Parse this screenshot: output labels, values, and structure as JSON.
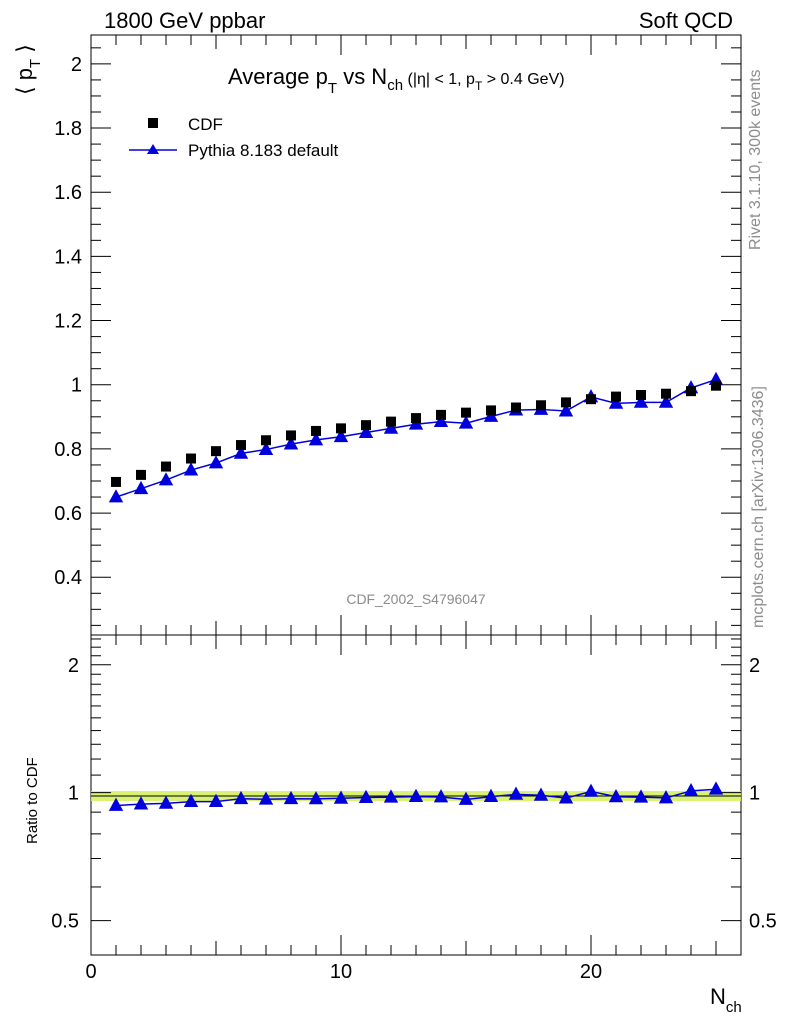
{
  "header": {
    "left": "1800 GeV ppbar",
    "right": "Soft QCD"
  },
  "side": {
    "rivet": "Rivet 3.1.10,  300k events",
    "mcplots": "mcplots.cern.ch [arXiv:1306.3436]"
  },
  "title": {
    "main_a": "Average p",
    "main_a_sub": "T",
    "main_b": " vs N",
    "main_b_sub": "ch",
    "cut_a": " (|η| < 1, p",
    "cut_sub": "T",
    "cut_b": " > 0.4 GeV)"
  },
  "analysis_tag": "CDF_2002_S4796047",
  "axes": {
    "y_label": "⟨ p",
    "y_label_sub": "T",
    "y_label_end": " ⟩",
    "x_label": "N",
    "x_label_sub": "ch",
    "ratio_label": "Ratio to CDF"
  },
  "legend": {
    "data": "CDF",
    "mc": "Pythia 8.183 default"
  },
  "colors": {
    "data": "#000000",
    "mc": "#0000dd",
    "band": "#d4f05a"
  },
  "chart_data": [
    {
      "type": "scatter",
      "title": "Average pT vs Nch (|η| < 1, pT > 0.4 GeV)",
      "xlabel": "Nch",
      "ylabel": "⟨pT⟩",
      "xlim": [
        0,
        26
      ],
      "ylim": [
        0.22,
        2.09
      ],
      "yticks": [
        0.4,
        0.6,
        0.8,
        1,
        1.2,
        1.4,
        1.6,
        1.8,
        2
      ],
      "ytick_labels": [
        "0.4",
        "0.6",
        "0.8",
        "1",
        "1.2",
        "1.4",
        "1.6",
        "1.8",
        "2"
      ],
      "x": [
        1,
        2,
        3,
        4,
        5,
        6,
        7,
        8,
        9,
        10,
        11,
        12,
        13,
        14,
        15,
        16,
        17,
        18,
        19,
        20,
        21,
        22,
        23,
        24,
        25
      ],
      "series": [
        {
          "name": "CDF",
          "marker": "square",
          "values": [
            0.697,
            0.719,
            0.745,
            0.77,
            0.793,
            0.812,
            0.827,
            0.842,
            0.856,
            0.864,
            0.874,
            0.885,
            0.896,
            0.906,
            0.913,
            0.92,
            0.929,
            0.936,
            0.945,
            0.955,
            0.963,
            0.968,
            0.972,
            0.98,
            0.997
          ]
        },
        {
          "name": "Pythia 8.183 default",
          "marker": "triangle",
          "values": [
            0.65,
            0.676,
            0.703,
            0.734,
            0.756,
            0.786,
            0.798,
            0.815,
            0.828,
            0.838,
            0.851,
            0.864,
            0.877,
            0.885,
            0.88,
            0.901,
            0.921,
            0.923,
            0.918,
            0.962,
            0.942,
            0.945,
            0.945,
            0.99,
            1.016
          ]
        }
      ]
    },
    {
      "type": "line",
      "title": "Ratio to CDF",
      "xlabel": "Nch",
      "ylabel": "Ratio to CDF",
      "xlim": [
        0,
        26
      ],
      "ylim": [
        0.415,
        2.35
      ],
      "scale": "log",
      "yticks": [
        0.5,
        1,
        2
      ],
      "ytick_labels": [
        "0.5",
        "1",
        "2"
      ],
      "xticks": [
        0,
        10,
        20
      ],
      "xtick_labels": [
        "0",
        "10",
        "20"
      ],
      "x": [
        1,
        2,
        3,
        4,
        5,
        6,
        7,
        8,
        9,
        10,
        11,
        12,
        13,
        14,
        15,
        16,
        17,
        18,
        19,
        20,
        21,
        22,
        23,
        24,
        25
      ],
      "series": [
        {
          "name": "Pythia 8.183 default / CDF",
          "values": [
            0.933,
            0.94,
            0.944,
            0.953,
            0.953,
            0.968,
            0.965,
            0.968,
            0.967,
            0.97,
            0.974,
            0.976,
            0.979,
            0.977,
            0.964,
            0.979,
            0.991,
            0.986,
            0.971,
            1.007,
            0.978,
            0.976,
            0.972,
            1.01,
            1.019
          ]
        }
      ]
    }
  ]
}
